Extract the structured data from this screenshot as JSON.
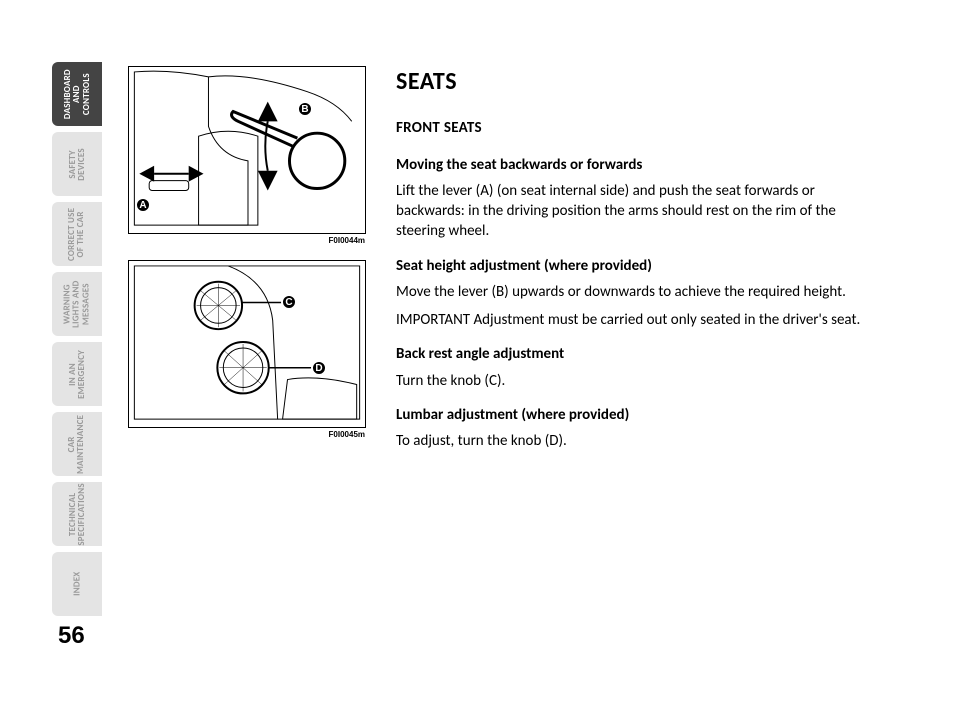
{
  "page_number": "56",
  "tabs": [
    {
      "label": "DASHBOARD\nAND\nCONTROLS",
      "active": true
    },
    {
      "label": "SAFETY\nDEVICES",
      "active": false
    },
    {
      "label": "CORRECT USE\nOF THE CAR",
      "active": false
    },
    {
      "label": "WARNING\nLIGHTS AND\nMESSAGES",
      "active": false
    },
    {
      "label": "IN AN\nEMERGENCY",
      "active": false
    },
    {
      "label": "CAR\nMAINTENANCE",
      "active": false
    },
    {
      "label": "TECHNICAL\nSPECIFICATIONS",
      "active": false
    },
    {
      "label": "INDEX",
      "active": false
    }
  ],
  "figures": {
    "fig1": {
      "caption": "F0I0044m",
      "callouts": {
        "A": "A",
        "B": "B"
      }
    },
    "fig2": {
      "caption": "F0I0045m",
      "callouts": {
        "C": "C",
        "D": "D"
      }
    }
  },
  "content": {
    "title": "SEATS",
    "section": "FRONT SEATS",
    "blocks": [
      {
        "heading": "Moving the seat backwards or forwards",
        "body": "Lift the lever (A) (on seat internal side) and push the seat forwards or backwards: in the driving position the arms should rest on the rim of the steering wheel."
      },
      {
        "heading": "Seat height adjustment (where provided)",
        "body": "Move the lever (B) upwards or downwards to achieve the required height.",
        "note": "IMPORTANT Adjustment must be carried out only seated in the driver's seat."
      },
      {
        "heading": "Back rest angle adjustment",
        "body": "Turn the knob (C)."
      },
      {
        "heading": "Lumbar adjustment (where provided)",
        "body": "To adjust, turn the knob (D)."
      }
    ]
  },
  "colors": {
    "tab_inactive_bg": "#e4e4e4",
    "tab_active_bg": "#444444",
    "tab_inactive_text": "#9a9a9a",
    "tab_active_text": "#ffffff",
    "text": "#000000",
    "background": "#ffffff"
  }
}
